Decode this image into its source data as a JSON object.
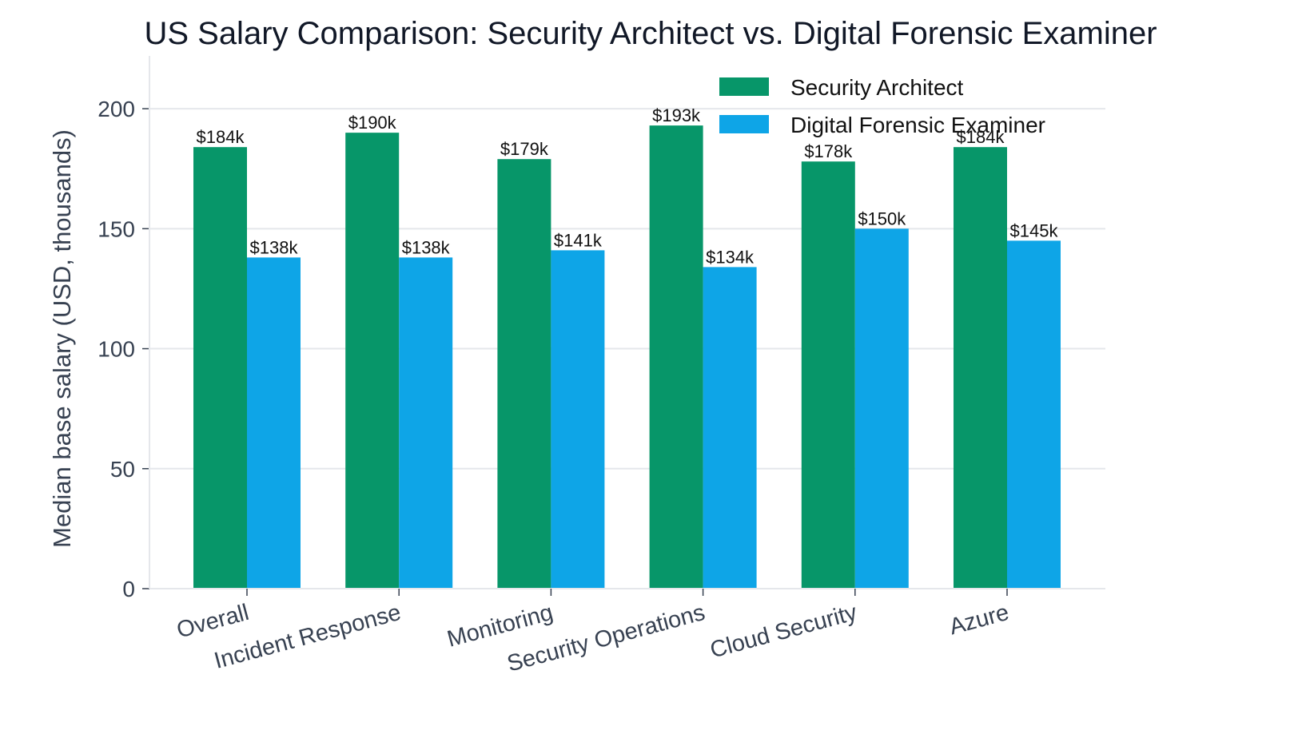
{
  "chart_data": {
    "type": "bar",
    "title": "US Salary Comparison: Security Architect vs. Digital Forensic Examiner",
    "xlabel": "",
    "ylabel": "Median base salary (USD, thousands)",
    "categories": [
      "Overall",
      "Incident Response",
      "Monitoring",
      "Security Operations",
      "Cloud Security",
      "Azure"
    ],
    "series": [
      {
        "name": "Security Architect",
        "color": "#079669",
        "values": [
          184,
          190,
          179,
          193,
          178,
          184
        ],
        "labels": [
          "$184k",
          "$190k",
          "$179k",
          "$193k",
          "$178k",
          "$184k"
        ]
      },
      {
        "name": "Digital Forensic Examiner",
        "color": "#0ea5e7",
        "values": [
          138,
          138,
          141,
          134,
          150,
          145
        ],
        "labels": [
          "$138k",
          "$138k",
          "$141k",
          "$134k",
          "$150k",
          "$145k"
        ]
      }
    ],
    "ylim": [
      0,
      222
    ],
    "yticks": [
      0,
      50,
      100,
      150,
      200
    ],
    "grid": "horizontal",
    "legend": "top-right"
  }
}
